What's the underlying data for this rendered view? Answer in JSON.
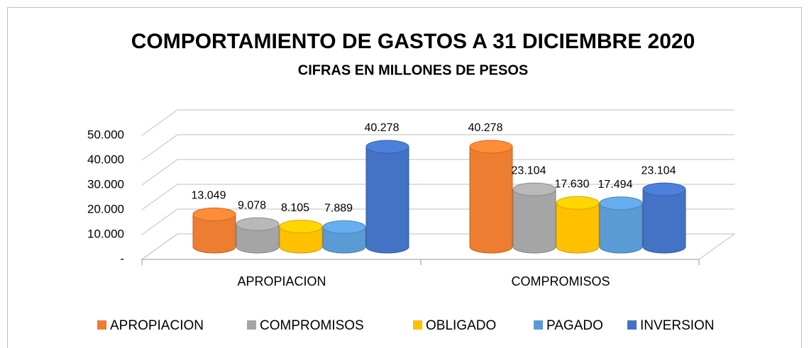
{
  "chart_data": {
    "type": "bar3d",
    "title": "COMPORTAMIENTO DE GASTOS A 31 DICIEMBRE 2020",
    "subtitle": "CIFRAS EN MILLONES DE PESOS",
    "categories": [
      "APROPIACION",
      "COMPROMISOS"
    ],
    "series": [
      {
        "name": "APROPIACION",
        "color": "#ed7d31",
        "values": [
          13049,
          40278
        ],
        "value_labels": [
          "13.049",
          "40.278"
        ]
      },
      {
        "name": "COMPROMISOS",
        "color": "#a5a5a5",
        "values": [
          9078,
          23104
        ],
        "value_labels": [
          "9.078",
          "23.104"
        ]
      },
      {
        "name": "OBLIGADO",
        "color": "#ffc000",
        "values": [
          8105,
          17630
        ],
        "value_labels": [
          "8.105",
          "17.630"
        ]
      },
      {
        "name": "PAGADO",
        "color": "#5b9bd5",
        "values": [
          7889,
          17494
        ],
        "value_labels": [
          "7.889",
          "17.494"
        ]
      },
      {
        "name": "INVERSION",
        "color": "#4472c4",
        "values": [
          40278,
          23104
        ],
        "value_labels": [
          "40.278",
          "23.104"
        ]
      }
    ],
    "ylim": [
      0,
      50000
    ],
    "yticks": [
      {
        "value": 0,
        "label": "-"
      },
      {
        "value": 10000,
        "label": "10.000"
      },
      {
        "value": 20000,
        "label": "20.000"
      },
      {
        "value": 30000,
        "label": "30.000"
      },
      {
        "value": 40000,
        "label": "40.000"
      },
      {
        "value": 50000,
        "label": "50.000"
      }
    ],
    "grid": true,
    "legend": "bottom"
  }
}
